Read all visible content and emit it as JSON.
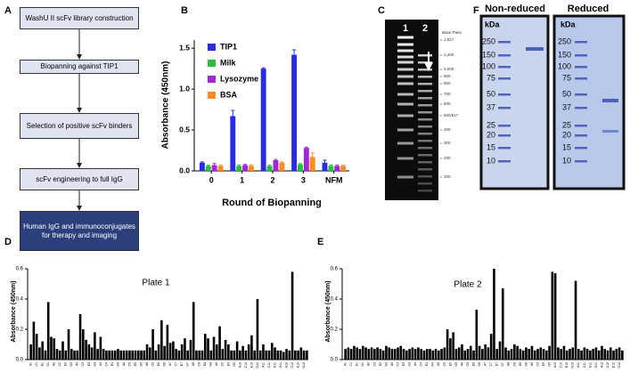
{
  "panel_labels": [
    "A",
    "B",
    "C",
    "D",
    "E",
    "F"
  ],
  "flowchart": {
    "nodes": [
      "WashU II scFv library construction",
      "Biopanning against TIP1",
      "Selection of positive scFv binders",
      "scFv engineering to full IgG",
      "Human IgG and immunoconjugates for therapy and imaging"
    ]
  },
  "gel_c": {
    "lanes": [
      "1",
      "2"
    ],
    "size_title": "Base Pairs",
    "sizes": [
      "1,517",
      "1,200",
      "1,000",
      "900",
      "800",
      "700",
      "600",
      "500/517",
      "400",
      "300",
      "200",
      "100"
    ]
  },
  "gel_f": {
    "panels": [
      {
        "title": "Non-reduced",
        "unit": "kDa",
        "markers": [
          250,
          150,
          100,
          75,
          50,
          37,
          25,
          20,
          15,
          10
        ]
      },
      {
        "title": "Reduced",
        "unit": "kDa",
        "markers": [
          250,
          150,
          100,
          75,
          50,
          37,
          25,
          20,
          15,
          10
        ]
      }
    ]
  },
  "chart_data": [
    {
      "type": "bar",
      "x_label": "Round of Biopanning",
      "y_label": "Absorbance (450nm)",
      "categories": [
        "0",
        "1",
        "2",
        "3",
        "NFM"
      ],
      "series": [
        {
          "name": "TIP1",
          "color": "#2b2be3",
          "values": [
            0.1,
            0.67,
            1.25,
            1.42,
            0.1
          ],
          "errors": [
            0.01,
            0.07,
            0.01,
            0.06,
            0.03
          ]
        },
        {
          "name": "Milk",
          "color": "#2cbd3a",
          "values": [
            0.06,
            0.06,
            0.06,
            0.08,
            0.06
          ],
          "errors": [
            0.01,
            0.01,
            0.01,
            0.01,
            0.01
          ]
        },
        {
          "name": "Lysozyme",
          "color": "#a326d6",
          "values": [
            0.07,
            0.07,
            0.13,
            0.28,
            0.06
          ],
          "errors": [
            0.02,
            0.01,
            0.01,
            0.01,
            0.01
          ]
        },
        {
          "name": "BSA",
          "color": "#ff8a1e",
          "values": [
            0.06,
            0.06,
            0.1,
            0.17,
            0.06
          ],
          "errors": [
            0.01,
            0.01,
            0.01,
            0.05,
            0.01
          ]
        }
      ],
      "ylim": [
        0,
        1.6
      ],
      "yticks": [
        {
          "value": 0,
          "label": "0.0"
        },
        {
          "value": 0.5,
          "label": "0.5"
        },
        {
          "value": 1,
          "label": "1.0"
        },
        {
          "value": 1.5,
          "label": "1.5"
        }
      ],
      "legend": "upper left"
    },
    {
      "type": "bar",
      "title": "Plate 1",
      "y_label": "Absorbance (450nm)",
      "color": "#000000",
      "categories": [
        "A1",
        null,
        "C1",
        null,
        "E1",
        null,
        "G1",
        null,
        "A2",
        null,
        "C2",
        null,
        "E2",
        null,
        "G2",
        null,
        "A3",
        null,
        "C3",
        null,
        "E3",
        null,
        "G3",
        null,
        "A4",
        null,
        "C4",
        null,
        "E4",
        null,
        "G4",
        null,
        "A5",
        null,
        "C5",
        null,
        "E5",
        null,
        "G5",
        null,
        "A6",
        null,
        "C6",
        null,
        "E6",
        null,
        "G6",
        null,
        "A7",
        null,
        "C7",
        null,
        "E7",
        null,
        "G7",
        null,
        "A8",
        null,
        "C8",
        null,
        "E8",
        null,
        "G8",
        null,
        "A9",
        null,
        "C9",
        null,
        "E9",
        null,
        "G9",
        null,
        "A10",
        null,
        "C10",
        null,
        "E10",
        null,
        "G10",
        null,
        "A11",
        null,
        "C11",
        null,
        "E11",
        null,
        "G11",
        null,
        "A12",
        null,
        "C12",
        null,
        "E12",
        null,
        "G12",
        null
      ],
      "values": [
        0.1,
        0.25,
        0.17,
        0.08,
        0.12,
        0.06,
        0.38,
        0.15,
        0.14,
        0.07,
        0.06,
        0.12,
        0.06,
        0.2,
        0.07,
        0.06,
        0.06,
        0.3,
        0.2,
        0.13,
        0.1,
        0.08,
        0.18,
        0.07,
        0.15,
        0.07,
        0.06,
        0.06,
        0.06,
        0.06,
        0.07,
        0.06,
        0.06,
        0.06,
        0.06,
        0.06,
        0.06,
        0.06,
        0.06,
        0.06,
        0.1,
        0.08,
        0.2,
        0.06,
        0.1,
        0.26,
        0.09,
        0.23,
        0.11,
        0.12,
        0.07,
        0.06,
        0.1,
        0.14,
        0.06,
        0.13,
        0.38,
        0.06,
        0.06,
        0.06,
        0.17,
        0.14,
        0.06,
        0.15,
        0.1,
        0.22,
        0.07,
        0.13,
        0.1,
        0.06,
        0.06,
        0.12,
        0.06,
        0.09,
        0.06,
        0.1,
        0.16,
        0.06,
        0.4,
        0.06,
        0.1,
        0.06,
        0.06,
        0.11,
        0.08,
        0.06,
        0.06,
        0.05,
        0.07,
        0.06,
        0.58,
        0.06,
        0.06,
        0.08,
        0.06,
        0.06
      ],
      "ylim": [
        0,
        0.6
      ],
      "yticks": [
        {
          "value": 0,
          "label": "0.0"
        },
        {
          "value": 0.2,
          "label": "0.2"
        },
        {
          "value": 0.4,
          "label": "0.4"
        },
        {
          "value": 0.6,
          "label": "0.6"
        }
      ]
    },
    {
      "type": "bar",
      "title": "Plate 2",
      "y_label": "Absorbance (450nm)",
      "color": "#000000",
      "categories": [
        "A1",
        null,
        "C1",
        null,
        "E1",
        null,
        "G1",
        null,
        "A2",
        null,
        "C2",
        null,
        "E2",
        null,
        "G2",
        null,
        "A3",
        null,
        "C3",
        null,
        "E3",
        null,
        "G3",
        null,
        "A4",
        null,
        "C4",
        null,
        "E4",
        null,
        "G4",
        null,
        "A5",
        null,
        "C5",
        null,
        "E5",
        null,
        "G5",
        null,
        "A6",
        null,
        "C6",
        null,
        "E6",
        null,
        "G6",
        null,
        "A7",
        null,
        "C7",
        null,
        "E7",
        null,
        "G7",
        null,
        "A8",
        null,
        "C8",
        null,
        "E8",
        null,
        "G8",
        null,
        "A9",
        null,
        "C9",
        null,
        "E9",
        null,
        "G9",
        null,
        "A10",
        null,
        "C10",
        null,
        "E10",
        null,
        "G10",
        null,
        "A11",
        null,
        "C11",
        null,
        "E11",
        null,
        "G11",
        null,
        "A12",
        null,
        "C12",
        null,
        "E12",
        null,
        "G12",
        null
      ],
      "values": [
        0.07,
        0.08,
        0.07,
        0.09,
        0.08,
        0.07,
        0.09,
        0.08,
        0.07,
        0.08,
        0.07,
        0.08,
        0.07,
        0.06,
        0.09,
        0.08,
        0.07,
        0.07,
        0.08,
        0.09,
        0.07,
        0.06,
        0.07,
        0.08,
        0.07,
        0.08,
        0.07,
        0.06,
        0.07,
        0.07,
        0.06,
        0.07,
        0.06,
        0.07,
        0.08,
        0.2,
        0.14,
        0.18,
        0.07,
        0.08,
        0.1,
        0.06,
        0.07,
        0.09,
        0.06,
        0.33,
        0.09,
        0.07,
        0.1,
        0.08,
        0.17,
        0.6,
        0.07,
        0.12,
        0.47,
        0.08,
        0.06,
        0.07,
        0.1,
        0.09,
        0.07,
        0.06,
        0.08,
        0.07,
        0.09,
        0.06,
        0.07,
        0.08,
        0.07,
        0.06,
        0.09,
        0.58,
        0.57,
        0.08,
        0.07,
        0.09,
        0.06,
        0.07,
        0.08,
        0.52,
        0.07,
        0.06,
        0.08,
        0.07,
        0.06,
        0.07,
        0.08,
        0.06,
        0.09,
        0.07,
        0.06,
        0.08,
        0.06,
        0.07,
        0.08,
        0.06
      ],
      "ylim": [
        0,
        0.6
      ],
      "yticks": [
        {
          "value": 0,
          "label": "0.0"
        },
        {
          "value": 0.2,
          "label": "0.2"
        },
        {
          "value": 0.4,
          "label": "0.4"
        },
        {
          "value": 0.6,
          "label": "0.6"
        }
      ]
    }
  ]
}
